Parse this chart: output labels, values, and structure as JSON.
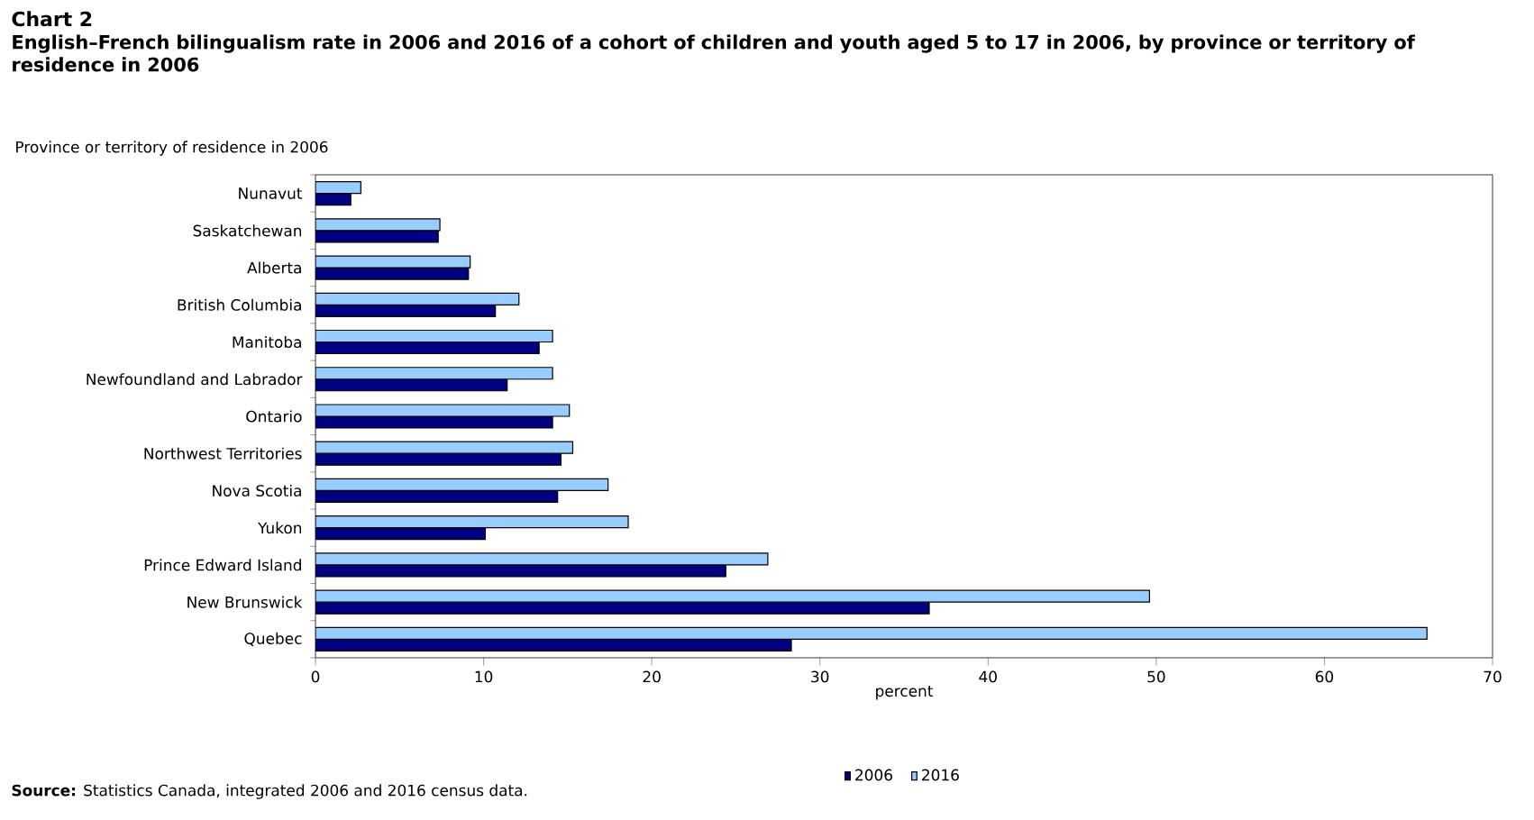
{
  "chart_data": {
    "type": "bar",
    "orientation": "horizontal",
    "title": "Chart 2",
    "subtitle": "English–French bilingualism rate in 2006 and 2016 of a cohort of children and youth aged 5 to 17 in 2006, by province or territory of residence in 2006",
    "ylabel": "Province or territory of residence in 2006",
    "xlabel": "percent",
    "annotations": [
      "**Source:** Statistics Canada, integrated 2006 and 2016 census data."
    ],
    "categories": [
      "Nunavut",
      "Saskatchewan",
      "Alberta",
      "British Columbia",
      "Manitoba",
      "Newfoundland and Labrador",
      "Ontario",
      "Northwest Territories",
      "Nova Scotia",
      "Yukon",
      "Prince Edward Island",
      "New Brunswick",
      "Quebec"
    ],
    "series": [
      {
        "name": "2006",
        "color": "#000080",
        "values": [
          2.1,
          7.3,
          9.1,
          10.7,
          13.3,
          11.4,
          14.1,
          14.6,
          14.4,
          10.1,
          24.4,
          36.5,
          28.3
        ]
      },
      {
        "name": "2016",
        "color": "#99ccff",
        "values": [
          2.7,
          7.4,
          9.2,
          12.1,
          14.1,
          14.1,
          15.1,
          15.3,
          17.4,
          18.6,
          26.9,
          49.6,
          66.1
        ]
      }
    ],
    "xlim": [
      0,
      70
    ],
    "xticks": [
      0,
      10,
      20,
      30,
      40,
      50,
      60,
      70
    ],
    "grid": false,
    "legend": "bottom"
  }
}
